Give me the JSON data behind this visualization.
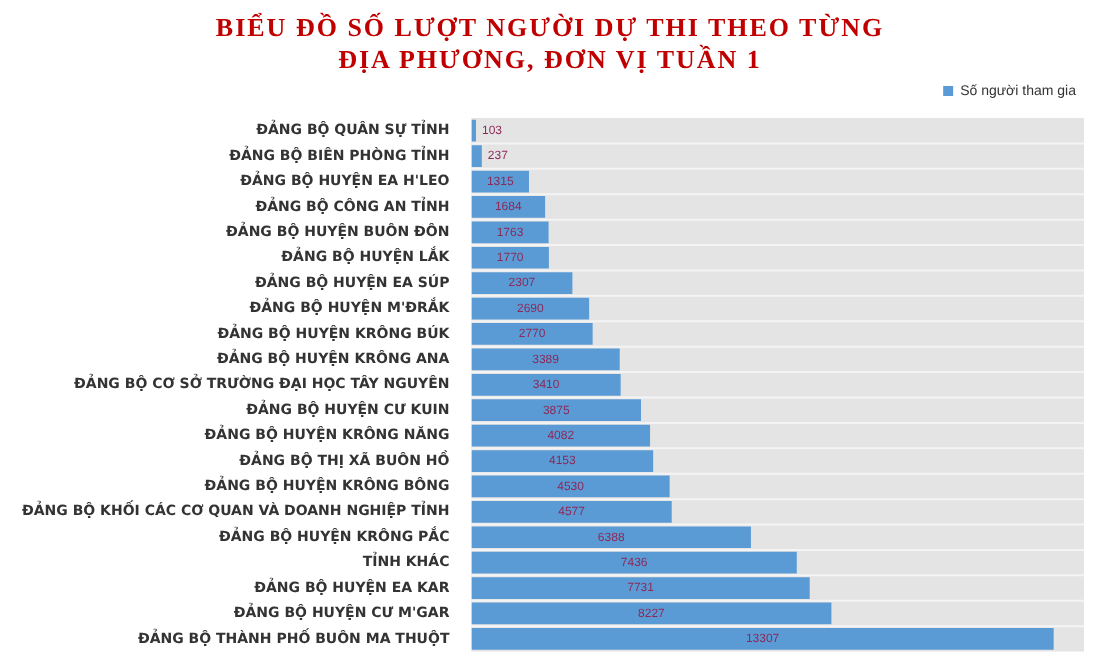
{
  "chart_data": {
    "type": "bar",
    "orientation": "horizontal",
    "title": "BIỂU ĐỒ SỐ LƯỢT NGƯỜI DỰ THI THEO TỪNG ĐỊA PHƯƠNG, ĐƠN VỊ TUẦN 1",
    "categories": [
      "ĐẢNG BỘ QUÂN SỰ TỈNH",
      "ĐẢNG BỘ BIÊN PHÒNG TỈNH",
      "ĐẢNG BỘ HUYỆN EA H'LEO",
      "ĐẢNG BỘ CÔNG AN TỈNH",
      "ĐẢNG BỘ HUYỆN BUÔN ĐÔN",
      "ĐẢNG BỘ HUYỆN LẮK",
      "ĐẢNG BỘ HUYỆN EA SÚP",
      "ĐẢNG BỘ HUYỆN M'ĐRẮK",
      "ĐẢNG BỘ HUYỆN KRÔNG BÚK",
      "ĐẢNG BỘ HUYỆN KRÔNG ANA",
      "ĐẢNG BỘ CƠ SỞ TRƯỜNG ĐẠI HỌC TÂY NGUYÊN",
      "ĐẢNG BỘ HUYỆN CƯ KUIN",
      "ĐẢNG BỘ HUYỆN KRÔNG NĂNG",
      "ĐẢNG BỘ THỊ XÃ BUÔN HỒ",
      "ĐẢNG BỘ HUYỆN KRÔNG BÔNG",
      "ĐẢNG BỘ KHỐI CÁC CƠ QUAN VÀ DOANH NGHIỆP TỈNH",
      "ĐẢNG BỘ HUYỆN KRÔNG PẮC",
      "TỈNH KHÁC",
      "ĐẢNG BỘ HUYỆN EA KAR",
      "ĐẢNG BỘ HUYỆN CƯ M'GAR",
      "ĐẢNG BỘ THÀNH PHỐ BUÔN MA THUỘT"
    ],
    "series": [
      {
        "name": "Số người tham gia",
        "color": "#5b9bd5",
        "values": [
          103,
          237,
          1315,
          1684,
          1763,
          1770,
          2307,
          2690,
          2770,
          3389,
          3410,
          3875,
          4082,
          4153,
          4530,
          4577,
          6388,
          7436,
          7731,
          8227,
          13307
        ]
      }
    ],
    "data_labels": true,
    "legend": "top right"
  }
}
